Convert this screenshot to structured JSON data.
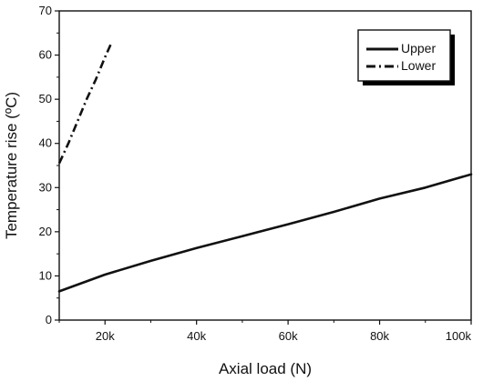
{
  "chart_data": {
    "type": "line",
    "xlabel": "Axial load (N)",
    "ylabel": "Temperature rise (ºC)",
    "xlim": [
      10000,
      100000
    ],
    "ylim": [
      0,
      70
    ],
    "grid": false,
    "legend_position": "top-right",
    "x_ticks": [
      20000,
      40000,
      60000,
      80000,
      100000
    ],
    "x_tick_labels": [
      "20k",
      "40k",
      "60k",
      "80k",
      "100k"
    ],
    "y_ticks": [
      0,
      10,
      20,
      30,
      40,
      50,
      60,
      70
    ],
    "y_tick_labels": [
      "0",
      "10",
      "20",
      "30",
      "40",
      "50",
      "60",
      "70"
    ],
    "series": [
      {
        "name": "Upper",
        "line_style": "solid",
        "color": "#111111",
        "x": [
          10000,
          20000,
          30000,
          40000,
          50000,
          60000,
          70000,
          80000,
          90000,
          100000
        ],
        "y": [
          6.5,
          10.3,
          13.4,
          16.3,
          19.0,
          21.7,
          24.5,
          27.5,
          30.0,
          33.0
        ]
      },
      {
        "name": "Lower",
        "line_style": "dash-dot",
        "color": "#111111",
        "x": [
          10000,
          12000,
          14000,
          16000,
          18000,
          20000,
          21500
        ],
        "y": [
          35.5,
          40.0,
          45.0,
          50.0,
          54.5,
          59.5,
          63.0
        ]
      }
    ]
  }
}
